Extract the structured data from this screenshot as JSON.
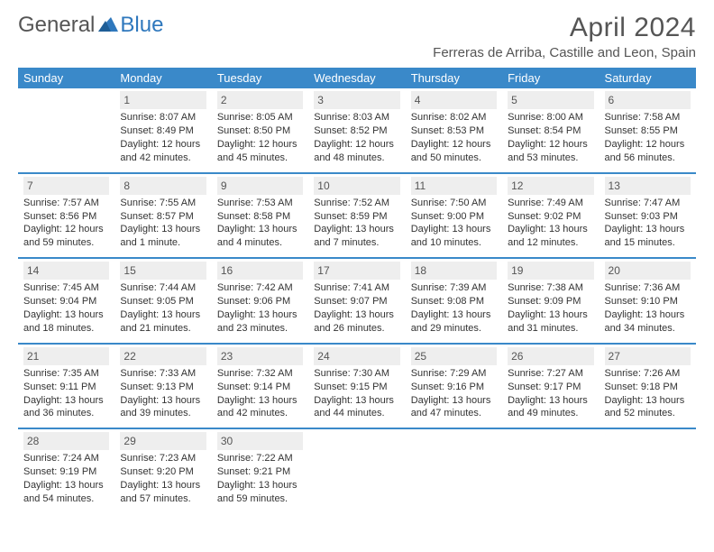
{
  "logo": {
    "part1": "General",
    "part2": "Blue"
  },
  "title": "April 2024",
  "location": "Ferreras de Arriba, Castille and Leon, Spain",
  "colors": {
    "header_bg": "#3a89c9",
    "header_text": "#ffffff",
    "row_border": "#3a89c9",
    "daynum_bg": "#eeeeee",
    "body_text": "#333333",
    "title_text": "#555555"
  },
  "day_headers": [
    "Sunday",
    "Monday",
    "Tuesday",
    "Wednesday",
    "Thursday",
    "Friday",
    "Saturday"
  ],
  "weeks": [
    [
      {
        "num": "",
        "lines": []
      },
      {
        "num": "1",
        "lines": [
          "Sunrise: 8:07 AM",
          "Sunset: 8:49 PM",
          "Daylight: 12 hours",
          "and 42 minutes."
        ]
      },
      {
        "num": "2",
        "lines": [
          "Sunrise: 8:05 AM",
          "Sunset: 8:50 PM",
          "Daylight: 12 hours",
          "and 45 minutes."
        ]
      },
      {
        "num": "3",
        "lines": [
          "Sunrise: 8:03 AM",
          "Sunset: 8:52 PM",
          "Daylight: 12 hours",
          "and 48 minutes."
        ]
      },
      {
        "num": "4",
        "lines": [
          "Sunrise: 8:02 AM",
          "Sunset: 8:53 PM",
          "Daylight: 12 hours",
          "and 50 minutes."
        ]
      },
      {
        "num": "5",
        "lines": [
          "Sunrise: 8:00 AM",
          "Sunset: 8:54 PM",
          "Daylight: 12 hours",
          "and 53 minutes."
        ]
      },
      {
        "num": "6",
        "lines": [
          "Sunrise: 7:58 AM",
          "Sunset: 8:55 PM",
          "Daylight: 12 hours",
          "and 56 minutes."
        ]
      }
    ],
    [
      {
        "num": "7",
        "lines": [
          "Sunrise: 7:57 AM",
          "Sunset: 8:56 PM",
          "Daylight: 12 hours",
          "and 59 minutes."
        ]
      },
      {
        "num": "8",
        "lines": [
          "Sunrise: 7:55 AM",
          "Sunset: 8:57 PM",
          "Daylight: 13 hours",
          "and 1 minute."
        ]
      },
      {
        "num": "9",
        "lines": [
          "Sunrise: 7:53 AM",
          "Sunset: 8:58 PM",
          "Daylight: 13 hours",
          "and 4 minutes."
        ]
      },
      {
        "num": "10",
        "lines": [
          "Sunrise: 7:52 AM",
          "Sunset: 8:59 PM",
          "Daylight: 13 hours",
          "and 7 minutes."
        ]
      },
      {
        "num": "11",
        "lines": [
          "Sunrise: 7:50 AM",
          "Sunset: 9:00 PM",
          "Daylight: 13 hours",
          "and 10 minutes."
        ]
      },
      {
        "num": "12",
        "lines": [
          "Sunrise: 7:49 AM",
          "Sunset: 9:02 PM",
          "Daylight: 13 hours",
          "and 12 minutes."
        ]
      },
      {
        "num": "13",
        "lines": [
          "Sunrise: 7:47 AM",
          "Sunset: 9:03 PM",
          "Daylight: 13 hours",
          "and 15 minutes."
        ]
      }
    ],
    [
      {
        "num": "14",
        "lines": [
          "Sunrise: 7:45 AM",
          "Sunset: 9:04 PM",
          "Daylight: 13 hours",
          "and 18 minutes."
        ]
      },
      {
        "num": "15",
        "lines": [
          "Sunrise: 7:44 AM",
          "Sunset: 9:05 PM",
          "Daylight: 13 hours",
          "and 21 minutes."
        ]
      },
      {
        "num": "16",
        "lines": [
          "Sunrise: 7:42 AM",
          "Sunset: 9:06 PM",
          "Daylight: 13 hours",
          "and 23 minutes."
        ]
      },
      {
        "num": "17",
        "lines": [
          "Sunrise: 7:41 AM",
          "Sunset: 9:07 PM",
          "Daylight: 13 hours",
          "and 26 minutes."
        ]
      },
      {
        "num": "18",
        "lines": [
          "Sunrise: 7:39 AM",
          "Sunset: 9:08 PM",
          "Daylight: 13 hours",
          "and 29 minutes."
        ]
      },
      {
        "num": "19",
        "lines": [
          "Sunrise: 7:38 AM",
          "Sunset: 9:09 PM",
          "Daylight: 13 hours",
          "and 31 minutes."
        ]
      },
      {
        "num": "20",
        "lines": [
          "Sunrise: 7:36 AM",
          "Sunset: 9:10 PM",
          "Daylight: 13 hours",
          "and 34 minutes."
        ]
      }
    ],
    [
      {
        "num": "21",
        "lines": [
          "Sunrise: 7:35 AM",
          "Sunset: 9:11 PM",
          "Daylight: 13 hours",
          "and 36 minutes."
        ]
      },
      {
        "num": "22",
        "lines": [
          "Sunrise: 7:33 AM",
          "Sunset: 9:13 PM",
          "Daylight: 13 hours",
          "and 39 minutes."
        ]
      },
      {
        "num": "23",
        "lines": [
          "Sunrise: 7:32 AM",
          "Sunset: 9:14 PM",
          "Daylight: 13 hours",
          "and 42 minutes."
        ]
      },
      {
        "num": "24",
        "lines": [
          "Sunrise: 7:30 AM",
          "Sunset: 9:15 PM",
          "Daylight: 13 hours",
          "and 44 minutes."
        ]
      },
      {
        "num": "25",
        "lines": [
          "Sunrise: 7:29 AM",
          "Sunset: 9:16 PM",
          "Daylight: 13 hours",
          "and 47 minutes."
        ]
      },
      {
        "num": "26",
        "lines": [
          "Sunrise: 7:27 AM",
          "Sunset: 9:17 PM",
          "Daylight: 13 hours",
          "and 49 minutes."
        ]
      },
      {
        "num": "27",
        "lines": [
          "Sunrise: 7:26 AM",
          "Sunset: 9:18 PM",
          "Daylight: 13 hours",
          "and 52 minutes."
        ]
      }
    ],
    [
      {
        "num": "28",
        "lines": [
          "Sunrise: 7:24 AM",
          "Sunset: 9:19 PM",
          "Daylight: 13 hours",
          "and 54 minutes."
        ]
      },
      {
        "num": "29",
        "lines": [
          "Sunrise: 7:23 AM",
          "Sunset: 9:20 PM",
          "Daylight: 13 hours",
          "and 57 minutes."
        ]
      },
      {
        "num": "30",
        "lines": [
          "Sunrise: 7:22 AM",
          "Sunset: 9:21 PM",
          "Daylight: 13 hours",
          "and 59 minutes."
        ]
      },
      {
        "num": "",
        "lines": []
      },
      {
        "num": "",
        "lines": []
      },
      {
        "num": "",
        "lines": []
      },
      {
        "num": "",
        "lines": []
      }
    ]
  ]
}
